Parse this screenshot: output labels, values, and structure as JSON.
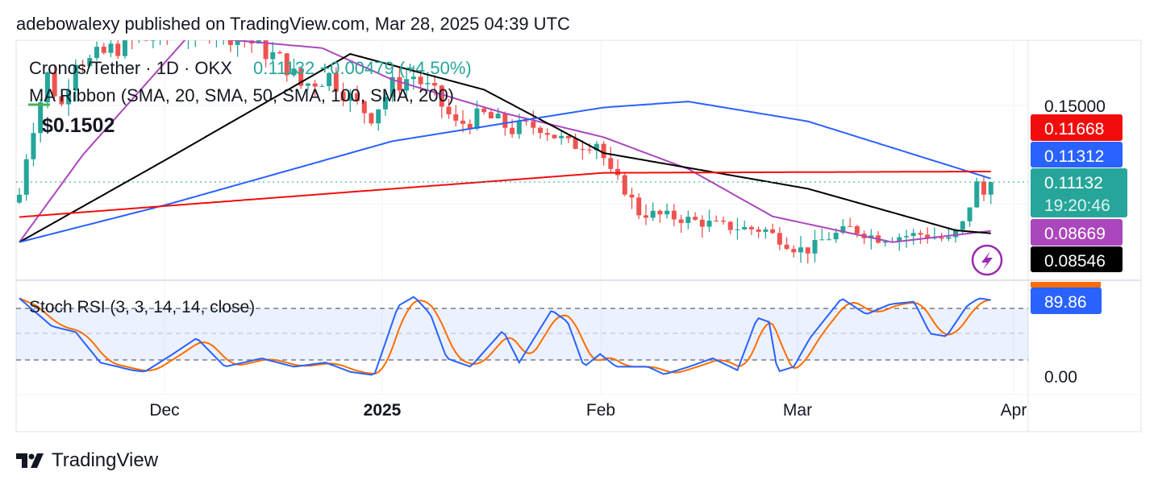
{
  "header": {
    "text": "adebowalexy published on TradingView.com, Mar 28, 2025 04:39 UTC"
  },
  "legend": {
    "symbol": "Cronos/Tether · 1D · OKX",
    "quote": "0.11132 +0.00479 (+4.50%)",
    "indicator": "MA Ribbon (SMA, 20, SMA, 50, SMA, 100, SMA, 200)",
    "callout": "$0.1502",
    "stoch": "Stoch RSI (3, 3, 14, 14, close)"
  },
  "price_axis": {
    "tick": "0.15000",
    "badges": [
      {
        "label": "0.11668",
        "color": "#f20d0d",
        "text_color": "#ffffff"
      },
      {
        "label": "0.11312",
        "color": "#2962ff",
        "text_color": "#ffffff"
      },
      {
        "label": "0.11132",
        "sub": "19:20:46",
        "color": "#26a69a",
        "text_color": "#ffffff"
      },
      {
        "label": "0.08669",
        "color": "#ab47bc",
        "text_color": "#ffffff"
      },
      {
        "label": "0.08546",
        "color": "#000000",
        "text_color": "#ffffff"
      }
    ]
  },
  "stoch_axis": {
    "value_badge": "89.86",
    "tick_low": "0.00"
  },
  "time_axis": [
    "Dec",
    "2025",
    "Feb",
    "Mar",
    "Apr"
  ],
  "footer": {
    "brand": "TradingView"
  },
  "colors": {
    "up": "#26a69a",
    "down": "#ef5350",
    "sma20": "#ab47bc",
    "sma50": "#000000",
    "sma100": "#2962ff",
    "sma200": "#f20d0d",
    "k": "#2962ff",
    "d": "#ff6d00"
  },
  "chart_data": {
    "type": "candlestick",
    "title": "Cronos/Tether · 1D · OKX",
    "start_date": "2024-11-10",
    "last_close": 0.11132,
    "price_ylim": [
      0.063,
      0.183
    ],
    "close_keyframes": [
      [
        0,
        0.105
      ],
      [
        1,
        0.125
      ],
      [
        2,
        0.14
      ],
      [
        4,
        0.165
      ],
      [
        6,
        0.15
      ],
      [
        8,
        0.175
      ],
      [
        10,
        0.172
      ],
      [
        14,
        0.18
      ],
      [
        20,
        0.185
      ],
      [
        28,
        0.19
      ],
      [
        34,
        0.18
      ],
      [
        38,
        0.17
      ],
      [
        40,
        0.16
      ],
      [
        44,
        0.165
      ],
      [
        48,
        0.15
      ],
      [
        50,
        0.145
      ],
      [
        53,
        0.16
      ],
      [
        56,
        0.165
      ],
      [
        59,
        0.155
      ],
      [
        62,
        0.14
      ],
      [
        66,
        0.145
      ],
      [
        70,
        0.138
      ],
      [
        74,
        0.14
      ],
      [
        78,
        0.13
      ],
      [
        82,
        0.132
      ],
      [
        84,
        0.115
      ],
      [
        86,
        0.108
      ],
      [
        88,
        0.096
      ],
      [
        94,
        0.093
      ],
      [
        100,
        0.089
      ],
      [
        106,
        0.087
      ],
      [
        110,
        0.078
      ],
      [
        112,
        0.077
      ],
      [
        114,
        0.082
      ],
      [
        118,
        0.088
      ],
      [
        122,
        0.083
      ],
      [
        128,
        0.085
      ],
      [
        132,
        0.082
      ],
      [
        134,
        0.09
      ],
      [
        135,
        0.1
      ],
      [
        136,
        0.11
      ],
      [
        137,
        0.105
      ],
      [
        138,
        0.11132
      ]
    ],
    "series": [
      {
        "name": "SMA 20",
        "color_key": "sma20",
        "points": [
          [
            0,
            0.081
          ],
          [
            9,
            0.125
          ],
          [
            24,
            0.185
          ],
          [
            43,
            0.179
          ],
          [
            53,
            0.163
          ],
          [
            69,
            0.146
          ],
          [
            83,
            0.134
          ],
          [
            95,
            0.118
          ],
          [
            107,
            0.094
          ],
          [
            124,
            0.081
          ],
          [
            138,
            0.08669
          ]
        ]
      },
      {
        "name": "SMA 50",
        "color_key": "sma50",
        "points": [
          [
            0,
            0.081
          ],
          [
            21,
            0.123
          ],
          [
            47,
            0.176
          ],
          [
            66,
            0.158
          ],
          [
            83,
            0.126
          ],
          [
            112,
            0.108
          ],
          [
            133,
            0.087
          ],
          [
            138,
            0.08546
          ]
        ]
      },
      {
        "name": "SMA 100",
        "color_key": "sma100",
        "points": [
          [
            0,
            0.081
          ],
          [
            21,
            0.1
          ],
          [
            53,
            0.132
          ],
          [
            83,
            0.149
          ],
          [
            95,
            0.152
          ],
          [
            112,
            0.142
          ],
          [
            138,
            0.11312
          ]
        ]
      },
      {
        "name": "SMA 200",
        "color_key": "sma200",
        "points": [
          [
            0,
            0.0937
          ],
          [
            83,
            0.116
          ],
          [
            138,
            0.11668
          ]
        ]
      }
    ],
    "stoch_rsi": {
      "ylim": [
        0,
        100
      ],
      "bands": [
        20,
        50,
        80
      ],
      "k_keyframes": [
        [
          0,
          92
        ],
        [
          4.6,
          59
        ],
        [
          8,
          52
        ],
        [
          11.5,
          16
        ],
        [
          16,
          7
        ],
        [
          17.8,
          5
        ],
        [
          21.8,
          26
        ],
        [
          25.2,
          45
        ],
        [
          29.2,
          11
        ],
        [
          34.4,
          21
        ],
        [
          39,
          11
        ],
        [
          43.5,
          16
        ],
        [
          47,
          5
        ],
        [
          50.4,
          1
        ],
        [
          53.8,
          83
        ],
        [
          56.1,
          94
        ],
        [
          58.4,
          73
        ],
        [
          60.7,
          21
        ],
        [
          64.1,
          11
        ],
        [
          68.7,
          54
        ],
        [
          71,
          16
        ],
        [
          75.6,
          78
        ],
        [
          77.9,
          64
        ],
        [
          80.2,
          11
        ],
        [
          82.5,
          26
        ],
        [
          84.8,
          11
        ],
        [
          89.3,
          11
        ],
        [
          91.6,
          2
        ],
        [
          95.1,
          11
        ],
        [
          98.5,
          21
        ],
        [
          102,
          7
        ],
        [
          104.8,
          69
        ],
        [
          106.5,
          64
        ],
        [
          107.7,
          5
        ],
        [
          110,
          11
        ],
        [
          112.3,
          45
        ],
        [
          116.8,
          92
        ],
        [
          120.3,
          73
        ],
        [
          123.7,
          85
        ],
        [
          127.1,
          88
        ],
        [
          129.4,
          50
        ],
        [
          131.7,
          47
        ],
        [
          134.6,
          83
        ],
        [
          136.3,
          92
        ],
        [
          138,
          89.86
        ]
      ]
    }
  }
}
